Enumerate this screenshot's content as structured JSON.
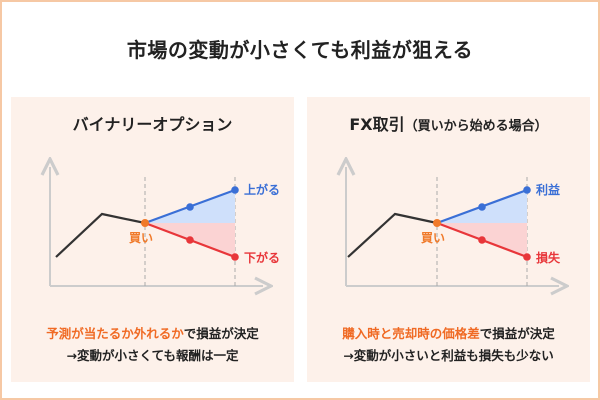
{
  "title": "市場の変動が小さくても利益が狙える",
  "colors": {
    "border": "#f6c8a4",
    "panel_bg": "#fdf1ea",
    "up": "#3a6fd6",
    "down": "#e8363a",
    "entry": "#f07a2a",
    "caption_accent": "#f06a24"
  },
  "left_panel": {
    "title": "バイナリーオプション",
    "up_label": "上がる",
    "down_label": "下がる",
    "entry_label": "買い",
    "caption_highlight": "予測が当たるか外れるか",
    "caption_rest": "で損益が決定",
    "caption_line2": "→変動が小さくても報酬は一定"
  },
  "right_panel": {
    "title_main": "FX取引",
    "title_sub": "（買いから始める場合）",
    "up_label": "利益",
    "down_label": "損失",
    "entry_label": "買い",
    "caption_highlight": "購入時と売却時の価格差",
    "caption_rest": "で損益が決定",
    "caption_line2": "→変動が小さいと利益も損失も少ない"
  }
}
